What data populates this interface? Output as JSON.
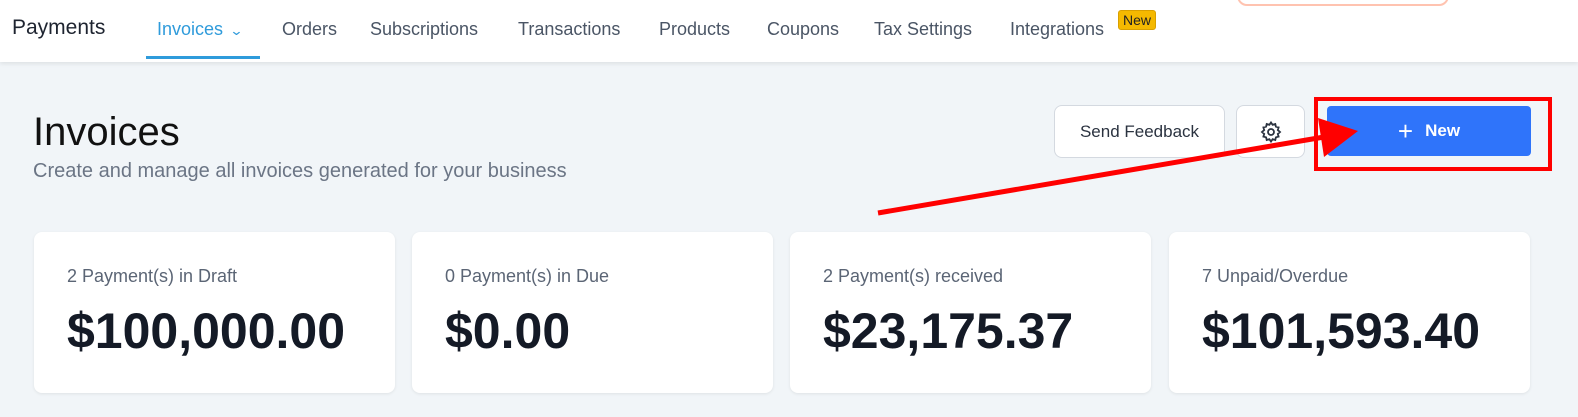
{
  "header": {
    "brand": "Payments",
    "nav": [
      {
        "label": "Invoices",
        "active": true
      },
      {
        "label": "Orders"
      },
      {
        "label": "Subscriptions"
      },
      {
        "label": "Transactions"
      },
      {
        "label": "Products"
      },
      {
        "label": "Coupons"
      },
      {
        "label": "Tax Settings"
      },
      {
        "label": "Integrations",
        "badge": "New"
      }
    ]
  },
  "page": {
    "title": "Invoices",
    "subtitle": "Create and manage all invoices generated for your business"
  },
  "actions": {
    "feedback": "Send Feedback",
    "settings_icon": "gear-icon",
    "new": "New",
    "new_icon": "plus-icon"
  },
  "cards": [
    {
      "label": "2 Payment(s) in Draft",
      "value": "$100,000.00"
    },
    {
      "label": "0 Payment(s) in Due",
      "value": "$0.00"
    },
    {
      "label": "2 Payment(s) received",
      "value": "$23,175.37"
    },
    {
      "label": "7 Unpaid/Overdue",
      "value": "$101,593.40"
    }
  ],
  "colors": {
    "accent": "#2f9bdb",
    "primary_button": "#2f74fa",
    "annotation": "#ff0000",
    "badge": "#f5b900"
  }
}
